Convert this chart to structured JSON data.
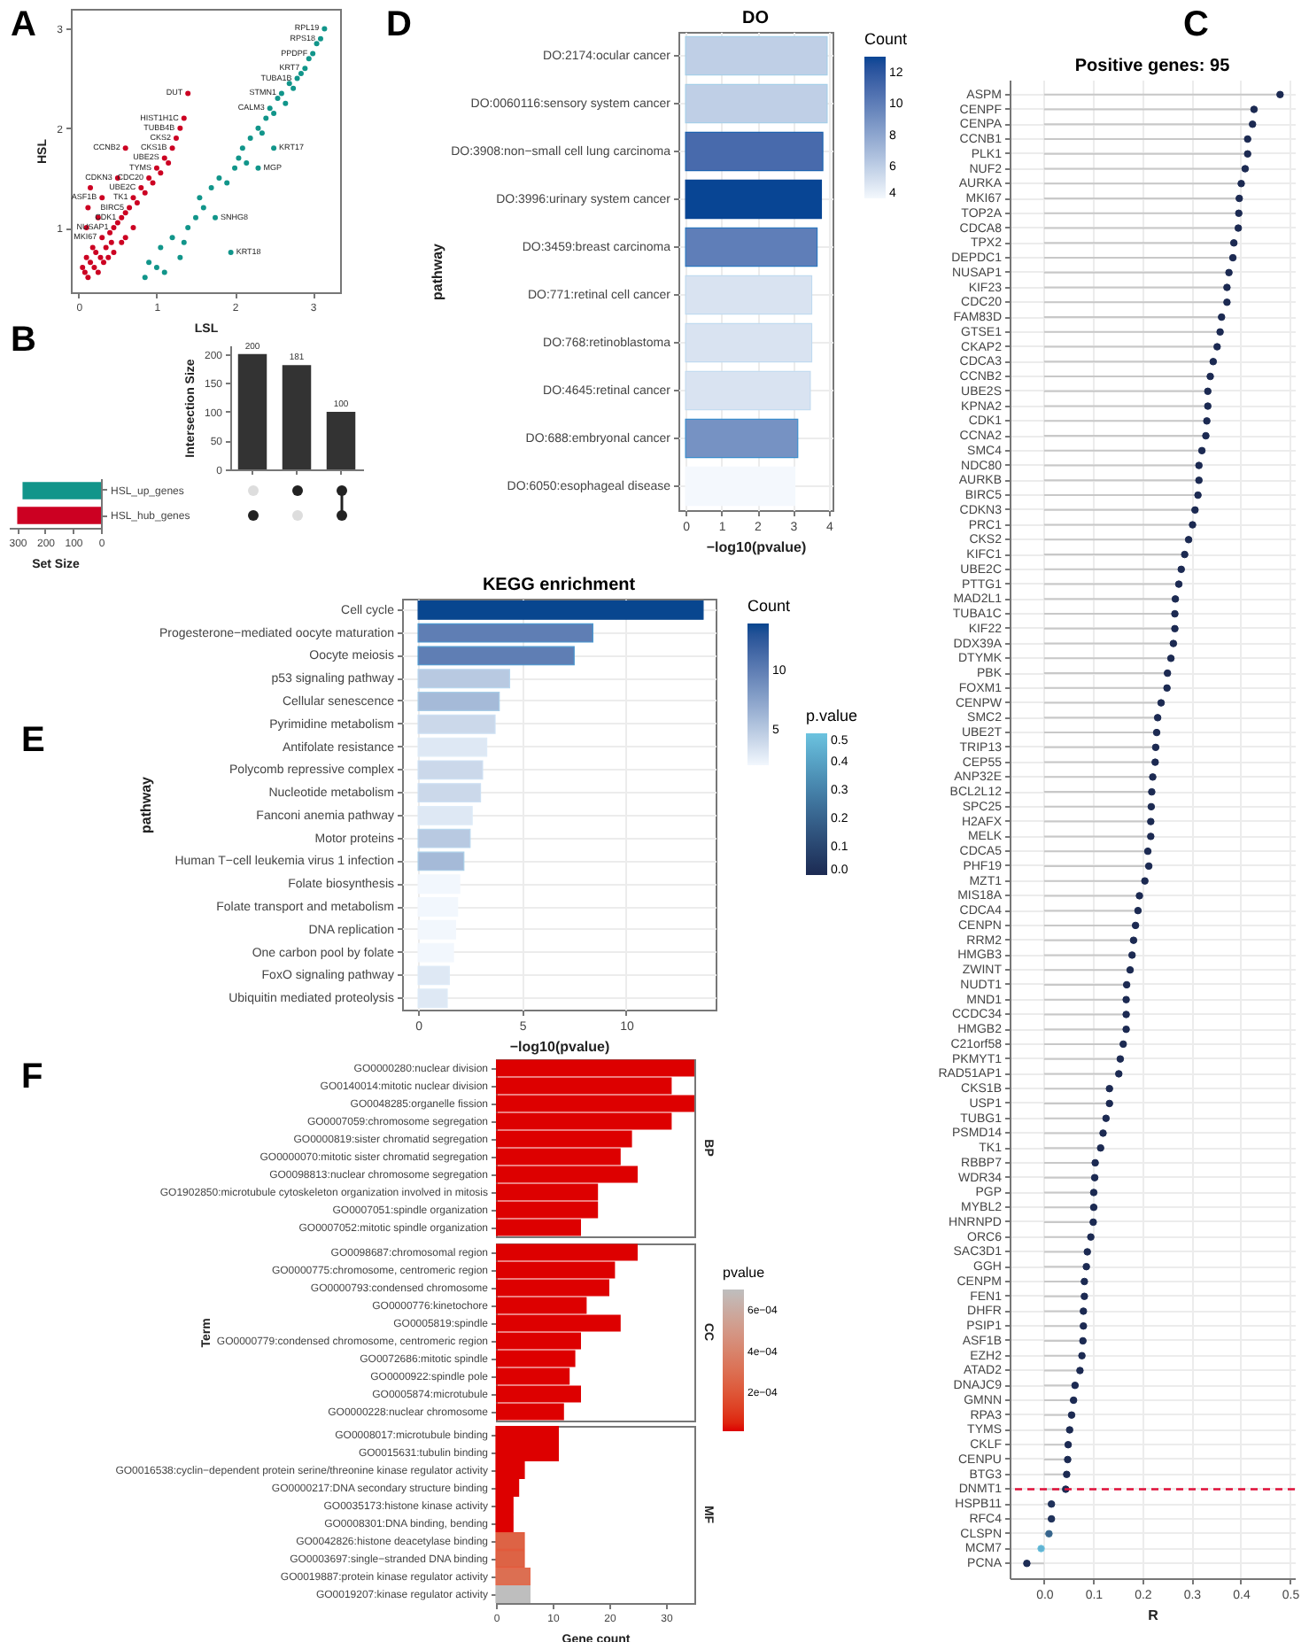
{
  "chart_data": [
    {
      "type": "scatter",
      "xlabel": "LSL",
      "ylabel": "HSL",
      "xlim": [
        -0.1,
        3.35
      ],
      "ylim": [
        0.35,
        3.2
      ],
      "xticks": [
        0,
        1,
        2,
        3
      ],
      "yticks": [
        1,
        2,
        3
      ],
      "marker": "circle",
      "annotations": [
        "A",
        {
          "text": "CCNB2",
          "x": 0.6,
          "y": 1.8
        },
        {
          "text": "CDKN3",
          "x": 0.5,
          "y": 1.5
        },
        {
          "text": "UBE2C",
          "x": 0.8,
          "y": 1.4
        },
        {
          "text": "NUSAP1",
          "x": 0.45,
          "y": 1.0
        },
        {
          "text": "CDC20",
          "x": 0.9,
          "y": 1.5
        },
        {
          "text": "CDK1",
          "x": 0.55,
          "y": 1.1
        },
        {
          "text": "MKI67",
          "x": 0.3,
          "y": 0.9
        },
        {
          "text": "TK1",
          "x": 0.7,
          "y": 1.3
        },
        {
          "text": "BIRC5",
          "x": 0.65,
          "y": 1.2
        },
        {
          "text": "ASF1B",
          "x": 0.3,
          "y": 1.3
        },
        {
          "text": "CKS2",
          "x": 1.25,
          "y": 1.9
        },
        {
          "text": "UBE2S",
          "x": 1.1,
          "y": 1.7
        },
        {
          "text": "TYMS",
          "x": 1.0,
          "y": 1.6
        },
        {
          "text": "CKS1B",
          "x": 1.2,
          "y": 1.8
        },
        {
          "text": "TUBB4B",
          "x": 1.3,
          "y": 2.0
        },
        {
          "text": "DUT",
          "x": 1.4,
          "y": 2.35
        },
        {
          "text": "HIST1H1C",
          "x": 1.35,
          "y": 2.1
        },
        {
          "text": "TUBA1B",
          "x": 2.8,
          "y": 2.5
        },
        {
          "text": "STMN1",
          "x": 2.6,
          "y": 2.35
        },
        {
          "text": "KRT7",
          "x": 2.9,
          "y": 2.6
        },
        {
          "text": "PPDPF",
          "x": 3.0,
          "y": 2.75
        },
        {
          "text": "CALM3",
          "x": 2.45,
          "y": 2.2
        },
        {
          "text": "KRT17",
          "x": 2.5,
          "y": 1.8
        },
        {
          "text": "MGP",
          "x": 2.3,
          "y": 1.6
        },
        {
          "text": "SNHG8",
          "x": 1.75,
          "y": 1.1
        },
        {
          "text": "KRT18",
          "x": 1.95,
          "y": 0.75
        },
        {
          "text": "RPL19",
          "x": 3.15,
          "y": 3.0
        },
        {
          "text": "RPS18",
          "x": 3.1,
          "y": 2.9
        }
      ],
      "series": [
        {
          "color": "#cc0022",
          "x": [
            0.05,
            0.08,
            0.1,
            0.12,
            0.15,
            0.18,
            0.2,
            0.22,
            0.25,
            0.28,
            0.3,
            0.32,
            0.35,
            0.38,
            0.4,
            0.42,
            0.45,
            0.5,
            0.55,
            0.6,
            0.65,
            0.7,
            0.75,
            0.8,
            0.85,
            0.9,
            0.95,
            1.0,
            1.05,
            1.1,
            1.15,
            1.2,
            1.25,
            1.3,
            1.35,
            1.4,
            0.1,
            0.12,
            0.15,
            0.3,
            0.5,
            0.6,
            0.25,
            0.7,
            0.6,
            0.45,
            0.55
          ],
          "values": [
            0.6,
            0.55,
            0.7,
            0.5,
            0.65,
            0.8,
            0.6,
            0.75,
            0.55,
            0.7,
            0.9,
            0.65,
            0.8,
            0.7,
            0.95,
            0.85,
            1.0,
            1.05,
            1.1,
            1.15,
            1.2,
            1.3,
            1.25,
            1.4,
            1.35,
            1.5,
            1.45,
            1.6,
            1.55,
            1.7,
            1.65,
            1.8,
            1.9,
            2.0,
            2.1,
            2.35,
            1.0,
            1.2,
            1.4,
            1.3,
            1.5,
            1.8,
            1.1,
            1.0,
            0.9,
            0.75,
            0.85
          ]
        },
        {
          "color": "#11958a",
          "x": [
            0.85,
            0.9,
            1.0,
            1.05,
            1.2,
            1.35,
            1.4,
            1.5,
            1.55,
            1.6,
            1.7,
            1.75,
            1.8,
            1.9,
            1.95,
            2.0,
            2.05,
            2.1,
            2.15,
            2.2,
            2.3,
            2.35,
            2.4,
            2.45,
            2.5,
            2.55,
            2.6,
            2.65,
            2.7,
            2.75,
            2.8,
            2.85,
            2.9,
            2.95,
            3.0,
            3.05,
            3.1,
            3.15,
            2.5,
            2.3,
            1.3,
            1.1
          ],
          "values": [
            0.5,
            0.65,
            0.6,
            0.8,
            0.9,
            0.85,
            1.0,
            1.1,
            1.3,
            1.2,
            1.4,
            1.1,
            1.5,
            1.45,
            0.75,
            1.6,
            1.7,
            1.8,
            1.65,
            1.9,
            2.0,
            1.95,
            2.1,
            2.2,
            2.15,
            2.3,
            2.35,
            2.25,
            2.45,
            2.4,
            2.5,
            2.55,
            2.6,
            2.7,
            2.75,
            2.85,
            2.9,
            3.0,
            1.8,
            1.6,
            0.7,
            0.55
          ]
        }
      ]
    },
    {
      "type": "bar",
      "ylabel": "Intersection Size",
      "categories": [
        null,
        null,
        null
      ],
      "values": [
        200,
        181,
        100
      ],
      "color": "#333333",
      "ylim": [
        0,
        215
      ],
      "yticks": [
        0,
        50,
        100,
        150,
        200
      ],
      "data_labels": true,
      "annotations": [
        "B"
      ]
    },
    {
      "type": "bar",
      "orientation": "horizontal",
      "xlabel": "Set Size",
      "categories": [
        "HSL_up_genes",
        "HSL_hub_genes"
      ],
      "values": [
        281,
        300
      ],
      "colors": [
        "#11958a",
        "#cc0022"
      ],
      "xlim": [
        330,
        0
      ],
      "xticks": [
        300,
        200,
        100,
        0
      ]
    },
    {
      "type": "bar",
      "orientation": "horizontal",
      "title": "DO",
      "xlabel": "−log10(pvalue)",
      "ylabel": "pathway",
      "clabel": "Count",
      "categories": [
        "DO:2174:ocular cancer",
        "DO:0060116:sensory system cancer",
        "DO:3908:non−small cell lung carcinoma",
        "DO:3996:urinary system cancer",
        "DO:3459:breast carcinoma",
        "DO:771:retinal cell cancer",
        "DO:768:retinoblastoma",
        "DO:4645:retinal cancer",
        "DO:688:embryonal cancer",
        "DO:6050:esophageal disease"
      ],
      "values": [
        3.95,
        3.95,
        3.83,
        3.79,
        3.67,
        3.52,
        3.52,
        3.48,
        3.13,
        3.05
      ],
      "colors": [
        "#a6cfe8",
        "#a6cfe8",
        "#1c62b0",
        "#084594",
        "#2c78c0",
        "#c0daf0",
        "#c0daf0",
        "#c4dcf0",
        "#3a8ccc",
        "#f4f8fd"
      ],
      "cvalues": [
        6,
        6,
        11,
        13,
        10,
        5,
        5,
        5,
        9,
        4
      ],
      "clim": [
        4,
        13
      ],
      "cticks": [
        4,
        6,
        8,
        10,
        12
      ],
      "xlim": [
        -0.2,
        4.1
      ],
      "xticks": [
        0,
        1,
        2,
        3,
        4
      ],
      "grid": true,
      "annotations": [
        "D"
      ]
    },
    {
      "type": "lollipop",
      "orientation": "horizontal",
      "title": "Positive genes: 95",
      "xlabel": "R",
      "clabel": "p.value",
      "categories": [
        "ASPM",
        "CENPF",
        "CENPA",
        "CCNB1",
        "PLK1",
        "NUF2",
        "AURKA",
        "MKI67",
        "TOP2A",
        "CDCA8",
        "TPX2",
        "DEPDC1",
        "NUSAP1",
        "KIF23",
        "CDC20",
        "FAM83D",
        "GTSE1",
        "CKAP2",
        "CDCA3",
        "CCNB2",
        "UBE2S",
        "KPNA2",
        "CDK1",
        "CCNA2",
        "SMC4",
        "NDC80",
        "AURKB",
        "BIRC5",
        "CDKN3",
        "PRC1",
        "CKS2",
        "KIFC1",
        "UBE2C",
        "PTTG1",
        "MAD2L1",
        "TUBA1C",
        "KIF22",
        "DDX39A",
        "DTYMK",
        "PBK",
        "FOXM1",
        "CENPW",
        "SMC2",
        "UBE2T",
        "TRIP13",
        "CEP55",
        "ANP32E",
        "BCL2L12",
        "SPC25",
        "H2AFX",
        "MELK",
        "CDCA5",
        "PHF19",
        "MZT1",
        "MIS18A",
        "CDCA4",
        "CENPN",
        "RRM2",
        "HMGB3",
        "ZWINT",
        "NUDT1",
        "MND1",
        "CCDC34",
        "HMGB2",
        "C21orf58",
        "PKMYT1",
        "RAD51AP1",
        "CKS1B",
        "USP1",
        "TUBG1",
        "PSMD14",
        "TK1",
        "RBBP7",
        "WDR34",
        "PGP",
        "MYBL2",
        "HNRNPD",
        "ORC6",
        "SAC3D1",
        "GGH",
        "CENPM",
        "FEN1",
        "DHFR",
        "PSIP1",
        "ASF1B",
        "EZH2",
        "ATAD2",
        "DNAJC9",
        "GMNN",
        "RPA3",
        "TYMS",
        "CKLF",
        "CENPU",
        "BTG3",
        "DNMT1",
        "HSPB11",
        "RFC4",
        "CLSPN",
        "MCM7",
        "PCNA"
      ],
      "values": [
        0.48,
        0.427,
        0.424,
        0.414,
        0.414,
        0.409,
        0.401,
        0.397,
        0.396,
        0.395,
        0.386,
        0.384,
        0.376,
        0.372,
        0.372,
        0.361,
        0.358,
        0.352,
        0.344,
        0.338,
        0.333,
        0.333,
        0.331,
        0.329,
        0.321,
        0.315,
        0.315,
        0.313,
        0.307,
        0.302,
        0.294,
        0.286,
        0.279,
        0.274,
        0.267,
        0.266,
        0.266,
        0.263,
        0.258,
        0.251,
        0.25,
        0.238,
        0.231,
        0.229,
        0.227,
        0.226,
        0.221,
        0.219,
        0.218,
        0.217,
        0.217,
        0.211,
        0.213,
        0.205,
        0.194,
        0.191,
        0.186,
        0.182,
        0.179,
        0.175,
        0.168,
        0.167,
        0.167,
        0.167,
        0.161,
        0.155,
        0.152,
        0.133,
        0.133,
        0.126,
        0.12,
        0.115,
        0.104,
        0.103,
        0.101,
        0.101,
        0.1,
        0.095,
        0.088,
        0.086,
        0.082,
        0.082,
        0.08,
        0.08,
        0.079,
        0.077,
        0.073,
        0.063,
        0.06,
        0.056,
        0.052,
        0.049,
        0.048,
        0.046,
        0.044,
        0.015,
        0.015,
        0.01,
        -0.006,
        -0.035
      ],
      "cvalues": [
        0,
        0,
        0,
        0,
        0,
        0,
        0,
        0,
        0,
        0,
        0,
        0,
        0,
        0,
        0,
        0,
        0,
        0,
        0,
        0,
        0,
        0,
        0,
        0,
        0,
        0,
        0,
        0,
        0,
        0,
        0,
        0,
        0,
        0,
        0,
        0,
        0,
        0,
        0,
        0,
        0,
        0,
        0,
        0,
        0,
        0,
        0,
        0,
        0,
        0,
        0,
        0,
        0,
        0,
        0,
        0,
        0,
        0,
        0,
        0,
        0,
        0,
        0,
        0,
        0,
        0,
        0,
        0,
        0,
        0,
        0,
        0,
        0,
        0,
        0,
        0,
        0,
        0,
        0,
        0,
        0,
        0,
        0,
        0,
        0,
        0,
        0,
        0,
        0,
        0,
        0,
        0,
        0,
        0,
        0,
        0.03,
        0.03,
        0.2,
        0.45,
        0.01
      ],
      "colors": [
        "#1c2a52",
        "#1c2a52",
        "#1c2a52",
        "#1c2a52",
        "#1c2a52",
        "#1c2a52",
        "#1c2a52",
        "#1c2a52",
        "#1c2a52",
        "#1c2a52",
        "#1c2a52",
        "#1c2a52",
        "#1c2a52",
        "#1c2a52",
        "#1c2a52",
        "#1c2a52",
        "#1c2a52",
        "#1c2a52",
        "#1c2a52",
        "#1c2a52",
        "#1c2a52",
        "#1c2a52",
        "#1c2a52",
        "#1c2a52",
        "#1c2a52",
        "#1c2a52",
        "#1c2a52",
        "#1c2a52",
        "#1c2a52",
        "#1c2a52",
        "#1c2a52",
        "#1c2a52",
        "#1c2a52",
        "#1c2a52",
        "#1c2a52",
        "#1c2a52",
        "#1c2a52",
        "#1c2a52",
        "#1c2a52",
        "#1c2a52",
        "#1c2a52",
        "#1c2a52",
        "#1c2a52",
        "#1c2a52",
        "#1c2a52",
        "#1c2a52",
        "#1c2a52",
        "#1c2a52",
        "#1c2a52",
        "#1c2a52",
        "#1c2a52",
        "#1c2a52",
        "#1c2a52",
        "#1c2a52",
        "#1c2a52",
        "#1c2a52",
        "#1c2a52",
        "#1c2a52",
        "#1c2a52",
        "#1c2a52",
        "#1c2a52",
        "#1c2a52",
        "#1c2a52",
        "#1c2a52",
        "#1c2a52",
        "#1c2a52",
        "#1c2a52",
        "#1c2a52",
        "#1c2a52",
        "#1c2a52",
        "#1c2a52",
        "#1c2a52",
        "#1c2a52",
        "#1c2a52",
        "#1c2a52",
        "#1c2a52",
        "#1c2a52",
        "#1c2a52",
        "#1c2a52",
        "#1c2a52",
        "#1c2a52",
        "#1c2a52",
        "#1c2a52",
        "#1c2a52",
        "#1c2a52",
        "#1c2a52",
        "#1c2a52",
        "#1c2a52",
        "#1c2a52",
        "#1c2a52",
        "#1c2a52",
        "#1c2a52",
        "#1c2a52",
        "#1c2a52",
        "#1c2a52",
        "#1f3158",
        "#1f3158",
        "#3d6f8f",
        "#6cc3df",
        "#1c2b54"
      ],
      "clim": [
        0,
        0.5
      ],
      "cticks": [
        {
          "value": 0,
          "label": "0.0"
        },
        {
          "value": 0.1,
          "label": "0.1"
        },
        {
          "value": 0.2,
          "label": "0.2"
        },
        {
          "value": 0.3,
          "label": "0.3"
        },
        {
          "value": 0.4,
          "label": "0.4"
        },
        {
          "value": 0.5,
          "label": "0.5"
        }
      ],
      "xlim": [
        -0.07,
        0.51
      ],
      "xticks": [
        {
          "value": 0,
          "label": "0.0"
        },
        {
          "value": 0.1,
          "label": "0.1"
        },
        {
          "value": 0.2,
          "label": "0.2"
        },
        {
          "value": 0.3,
          "label": "0.3"
        },
        {
          "value": 0.4,
          "label": "0.4"
        },
        {
          "value": 0.5,
          "label": "0.5"
        }
      ],
      "grid": true,
      "ref_lines": [
        {
          "axis": "y",
          "value": "DNMT1",
          "color": "#e0103a",
          "line_style": "dashed"
        }
      ],
      "annotations": [
        "C"
      ]
    },
    {
      "type": "bar",
      "orientation": "horizontal",
      "title": "KEGG enrichment",
      "xlabel": "−log10(pvalue)",
      "ylabel": "pathway",
      "clabel": "Count",
      "categories": [
        "Cell cycle",
        "Progesterone−mediated oocyte maturation",
        "Oocyte meiosis",
        "p53 signaling pathway",
        "Cellular senescence",
        "Pyrimidine metabolism",
        "Antifolate resistance",
        "Polycomb repressive complex",
        "Nucleotide metabolism",
        "Fanconi anemia pathway",
        "Motor proteins",
        "Human T−cell leukemia virus 1 infection",
        "Folate biosynthesis",
        "Folate transport and metabolism",
        "DNA replication",
        "One carbon pool by folate",
        "FoxO signaling pathway",
        "Ubiquitin mediated proteolysis"
      ],
      "values": [
        13.7,
        8.4,
        7.5,
        4.4,
        3.9,
        3.7,
        3.3,
        3.1,
        3.0,
        2.6,
        2.5,
        2.2,
        2.0,
        1.9,
        1.8,
        1.7,
        1.5,
        1.4
      ],
      "colors": [
        "#08468f",
        "#4a98d0",
        "#4a98d0",
        "#b8d6ee",
        "#a8cde8",
        "#cde0f3",
        "#deebf8",
        "#cde0f3",
        "#cde0f3",
        "#deebf8",
        "#b8d6ee",
        "#a8cde8",
        "#f2f7fd",
        "#f2f7fd",
        "#f2f7fd",
        "#f2f7fd",
        "#deebf8",
        "#deebf8"
      ],
      "cvalues": [
        14,
        10,
        10,
        5,
        6,
        4,
        3,
        4,
        4,
        3,
        5,
        6,
        2,
        2,
        2,
        2,
        3,
        3
      ],
      "clim": [
        2,
        14
      ],
      "cticks": [
        5,
        10
      ],
      "xlim": [
        -0.77,
        14.3
      ],
      "xticks": [
        0,
        5,
        10
      ],
      "grid": true,
      "annotations": [
        "E"
      ]
    },
    {
      "type": "bar",
      "orientation": "horizontal",
      "title": "BP",
      "categories": [
        "GO0000280:nuclear division",
        "GO0140014:mitotic nuclear division",
        "GO0048285:organelle fission",
        "GO0007059:chromosome segregation",
        "GO0000819:sister chromatid segregation",
        "GO0000070:mitotic sister chromatid segregation",
        "GO0098813:nuclear chromosome segregation",
        "GO1902850:microtubule cytoskeleton organization involved in mitosis",
        "GO0007051:spindle organization",
        "GO0007052:mitotic spindle organization"
      ],
      "values": [
        35,
        31,
        35,
        31,
        24,
        22,
        25,
        18,
        18,
        15
      ],
      "color": "#dd0000",
      "xlim": [
        0,
        35
      ],
      "xticks": [
        0,
        10,
        20,
        30
      ],
      "tick_labels": "y",
      "annotations": [
        "F"
      ]
    },
    {
      "type": "bar",
      "orientation": "horizontal",
      "title": "CC",
      "ylabel": "Term",
      "categories": [
        "GO0098687:chromosomal region",
        "GO0000775:chromosome, centromeric region",
        "GO0000793:condensed chromosome",
        "GO0000776:kinetochore",
        "GO0005819:spindle",
        "GO0000779:condensed chromosome, centromeric region",
        "GO0072686:mitotic spindle",
        "GO0000922:spindle pole",
        "GO0005874:microtubule",
        "GO0000228:nuclear chromosome"
      ],
      "values": [
        25,
        21,
        20,
        16,
        22,
        15,
        14,
        13,
        15,
        12
      ],
      "color": "#dd0000",
      "xlim": [
        0,
        35
      ],
      "xticks": [
        0,
        10,
        20,
        30
      ],
      "tick_labels": "y"
    },
    {
      "type": "bar",
      "orientation": "horizontal",
      "title": "MF",
      "xlabel": "Gene count",
      "clabel": "pvalue",
      "categories": [
        "GO0008017:microtubule binding",
        "GO0015631:tubulin binding",
        "GO0016538:cyclin−dependent protein serine/threonine kinase regulator activity",
        "GO0000217:DNA secondary structure binding",
        "GO0035173:histone kinase activity",
        "GO0008301:DNA binding, bending",
        "GO0042826:histone deacetylase binding",
        "GO0003697:single−stranded DNA binding",
        "GO0019887:protein kinase regulator activity",
        "GO0019207:kinase regulator activity"
      ],
      "values": [
        11,
        11,
        5,
        4,
        3,
        3,
        5,
        5,
        6,
        6
      ],
      "colors": [
        "#dd0000",
        "#dd0000",
        "#dd0000",
        "#dd0000",
        "#dd0000",
        "#dd0000",
        "#e25a3c",
        "#e25a3c",
        "#e46a4e",
        "#bebebe"
      ],
      "cvalues": [
        1e-05,
        1e-05,
        1e-05,
        1e-05,
        1e-05,
        1e-05,
        0.00025,
        0.00025,
        0.0003,
        0.0007
      ],
      "clim": [
        1e-05,
        0.0007
      ],
      "cticks": [
        {
          "value": 0.0002,
          "label": "2e−04"
        },
        {
          "value": 0.0004,
          "label": "4e−04"
        },
        {
          "value": 0.0006,
          "label": "6e−04"
        }
      ],
      "xlim": [
        0,
        35
      ],
      "xticks": [
        0,
        10,
        20,
        30
      ]
    }
  ]
}
